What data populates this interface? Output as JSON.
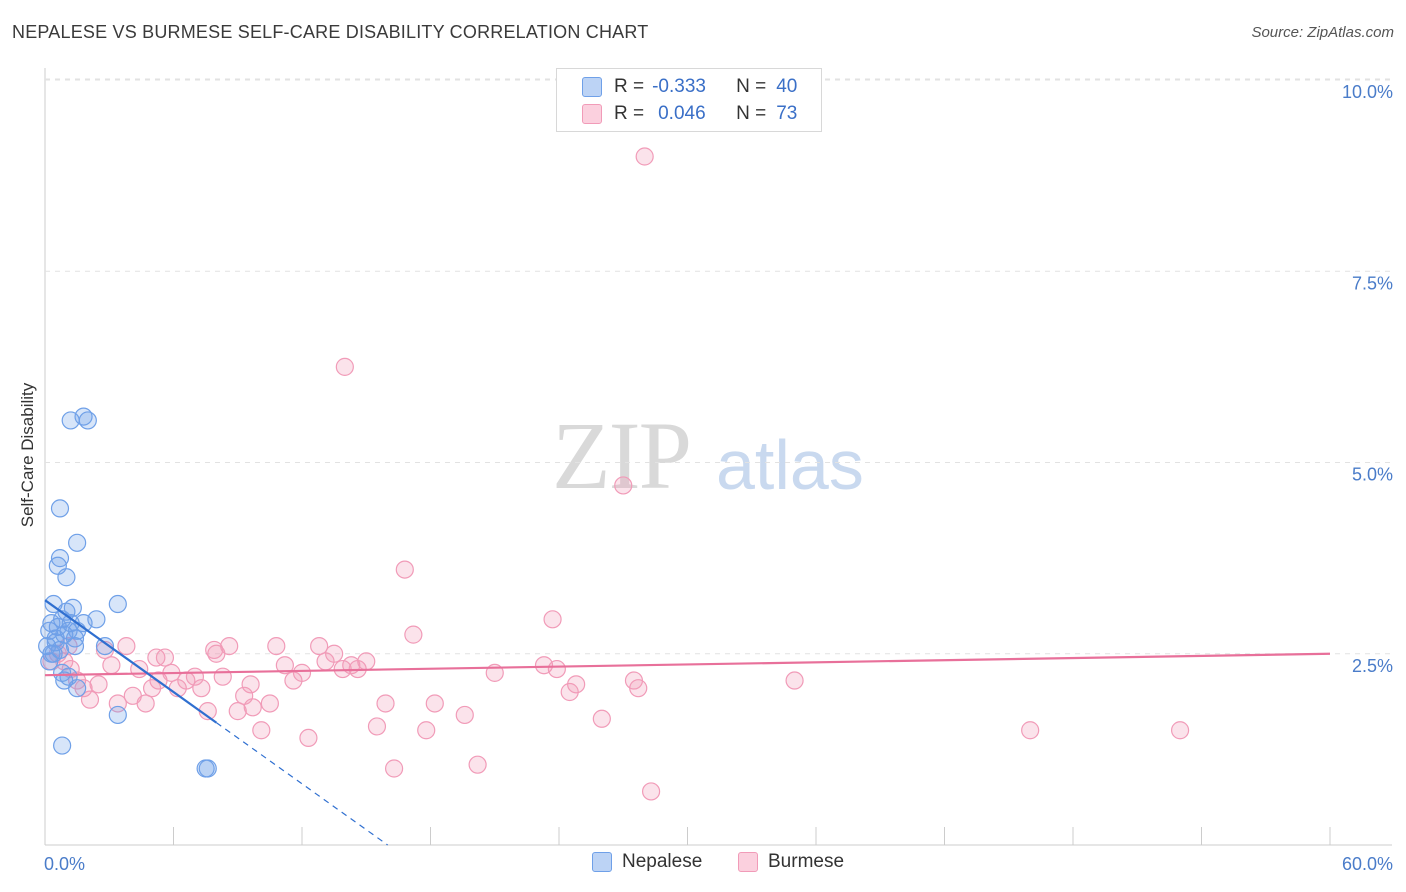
{
  "header": {
    "title": "NEPALESE VS BURMESE SELF-CARE DISABILITY CORRELATION CHART",
    "source": "Source: ZipAtlas.com"
  },
  "watermark": {
    "zip": "ZIP",
    "atlas": "atlas"
  },
  "legend": {
    "rows": [
      {
        "r_label": "R =",
        "r_value": "-0.333",
        "n_label": "N =",
        "n_value": "40"
      },
      {
        "r_label": "R =",
        "r_value": "0.046",
        "n_label": "N =",
        "n_value": "73"
      }
    ]
  },
  "bottom_legend": {
    "items": [
      "Nepalese",
      "Burmese"
    ]
  },
  "chart_data": {
    "type": "scatter",
    "title": "NEPALESE VS BURMESE SELF-CARE DISABILITY CORRELATION CHART",
    "xlabel": "",
    "ylabel": "Self-Care Disability",
    "xlim": [
      0,
      60
    ],
    "ylim": [
      0,
      10
    ],
    "x_tick_labels": [
      "0.0%",
      "60.0%"
    ],
    "y_ticks": [
      2.5,
      5.0,
      7.5,
      10.0
    ],
    "y_tick_labels": [
      "2.5%",
      "5.0%",
      "7.5%",
      "10.0%"
    ],
    "grid": "horizontal dashed",
    "legend_position": "top-center",
    "colors": {
      "Nepalese": "#6fa0e8",
      "Burmese": "#f19bb8",
      "nepalese_line": "#2f6fd0",
      "burmese_line": "#e8709a"
    },
    "series": [
      {
        "name": "Nepalese",
        "r": -0.333,
        "n": 40,
        "trend": {
          "x0": 0,
          "y0": 3.2,
          "x1": 8,
          "y1": 1.6,
          "dashed_to_x": 16
        },
        "points": [
          [
            0.1,
            2.6
          ],
          [
            0.2,
            2.8
          ],
          [
            0.3,
            2.5
          ],
          [
            0.4,
            3.15
          ],
          [
            0.3,
            2.9
          ],
          [
            0.5,
            2.7
          ],
          [
            0.6,
            2.85
          ],
          [
            0.2,
            2.4
          ],
          [
            0.4,
            2.5
          ],
          [
            0.8,
            2.95
          ],
          [
            0.9,
            2.75
          ],
          [
            0.7,
            2.55
          ],
          [
            1.0,
            3.05
          ],
          [
            1.1,
            2.8
          ],
          [
            1.2,
            2.9
          ],
          [
            1.4,
            2.7
          ],
          [
            1.5,
            2.8
          ],
          [
            1.0,
            3.5
          ],
          [
            0.6,
            3.65
          ],
          [
            0.7,
            3.75
          ],
          [
            1.5,
            3.95
          ],
          [
            0.7,
            4.4
          ],
          [
            1.8,
            2.9
          ],
          [
            1.5,
            2.05
          ],
          [
            1.1,
            2.2
          ],
          [
            0.8,
            2.25
          ],
          [
            0.9,
            2.15
          ],
          [
            1.2,
            5.55
          ],
          [
            1.8,
            5.6
          ],
          [
            2.0,
            5.55
          ],
          [
            2.4,
            2.95
          ],
          [
            3.4,
            3.15
          ],
          [
            3.4,
            1.7
          ],
          [
            0.8,
            1.3
          ],
          [
            7.5,
            1.0
          ],
          [
            7.6,
            1.0
          ],
          [
            2.8,
            2.6
          ],
          [
            1.4,
            2.6
          ],
          [
            1.3,
            3.1
          ],
          [
            0.5,
            2.65
          ]
        ]
      },
      {
        "name": "Burmese",
        "r": 0.046,
        "n": 73,
        "trend": {
          "x0": 0,
          "y0": 2.22,
          "x1": 60,
          "y1": 2.5
        },
        "points": [
          [
            0.3,
            2.4
          ],
          [
            0.6,
            2.5
          ],
          [
            0.9,
            2.4
          ],
          [
            1.2,
            2.3
          ],
          [
            1.5,
            2.15
          ],
          [
            1.8,
            2.05
          ],
          [
            2.1,
            1.9
          ],
          [
            2.5,
            2.1
          ],
          [
            2.8,
            2.55
          ],
          [
            3.1,
            2.35
          ],
          [
            3.4,
            1.85
          ],
          [
            3.8,
            2.6
          ],
          [
            4.1,
            1.95
          ],
          [
            4.4,
            2.3
          ],
          [
            4.7,
            1.85
          ],
          [
            5.0,
            2.05
          ],
          [
            5.3,
            2.15
          ],
          [
            5.6,
            2.45
          ],
          [
            5.9,
            2.25
          ],
          [
            6.2,
            2.05
          ],
          [
            6.6,
            2.15
          ],
          [
            7.0,
            2.2
          ],
          [
            7.3,
            2.05
          ],
          [
            7.6,
            1.75
          ],
          [
            8.0,
            2.5
          ],
          [
            8.3,
            2.2
          ],
          [
            8.6,
            2.6
          ],
          [
            9.0,
            1.75
          ],
          [
            9.3,
            1.95
          ],
          [
            9.7,
            1.8
          ],
          [
            10.1,
            1.5
          ],
          [
            10.5,
            1.85
          ],
          [
            10.8,
            2.6
          ],
          [
            11.2,
            2.35
          ],
          [
            11.6,
            2.15
          ],
          [
            12.0,
            2.25
          ],
          [
            12.3,
            1.4
          ],
          [
            12.8,
            2.6
          ],
          [
            13.1,
            2.4
          ],
          [
            13.5,
            2.5
          ],
          [
            13.9,
            2.3
          ],
          [
            14.3,
            2.35
          ],
          [
            14.6,
            2.3
          ],
          [
            15.0,
            2.4
          ],
          [
            15.5,
            1.55
          ],
          [
            15.9,
            1.85
          ],
          [
            16.3,
            1.0
          ],
          [
            16.8,
            3.6
          ],
          [
            17.2,
            2.75
          ],
          [
            17.8,
            1.5
          ],
          [
            18.2,
            1.85
          ],
          [
            19.6,
            1.7
          ],
          [
            20.2,
            1.05
          ],
          [
            21.0,
            2.25
          ],
          [
            23.3,
            2.35
          ],
          [
            23.7,
            2.95
          ],
          [
            23.9,
            2.3
          ],
          [
            24.5,
            2.0
          ],
          [
            24.8,
            2.1
          ],
          [
            26.0,
            1.65
          ],
          [
            27.0,
            4.7
          ],
          [
            27.5,
            2.15
          ],
          [
            27.7,
            2.05
          ],
          [
            28.3,
            0.7
          ],
          [
            28.0,
            9.0
          ],
          [
            35.0,
            2.15
          ],
          [
            46.0,
            1.5
          ],
          [
            53.0,
            1.5
          ],
          [
            14.0,
            6.25
          ],
          [
            7.9,
            2.55
          ],
          [
            5.2,
            2.45
          ],
          [
            9.6,
            2.1
          ],
          [
            1.1,
            2.6
          ]
        ]
      }
    ]
  }
}
